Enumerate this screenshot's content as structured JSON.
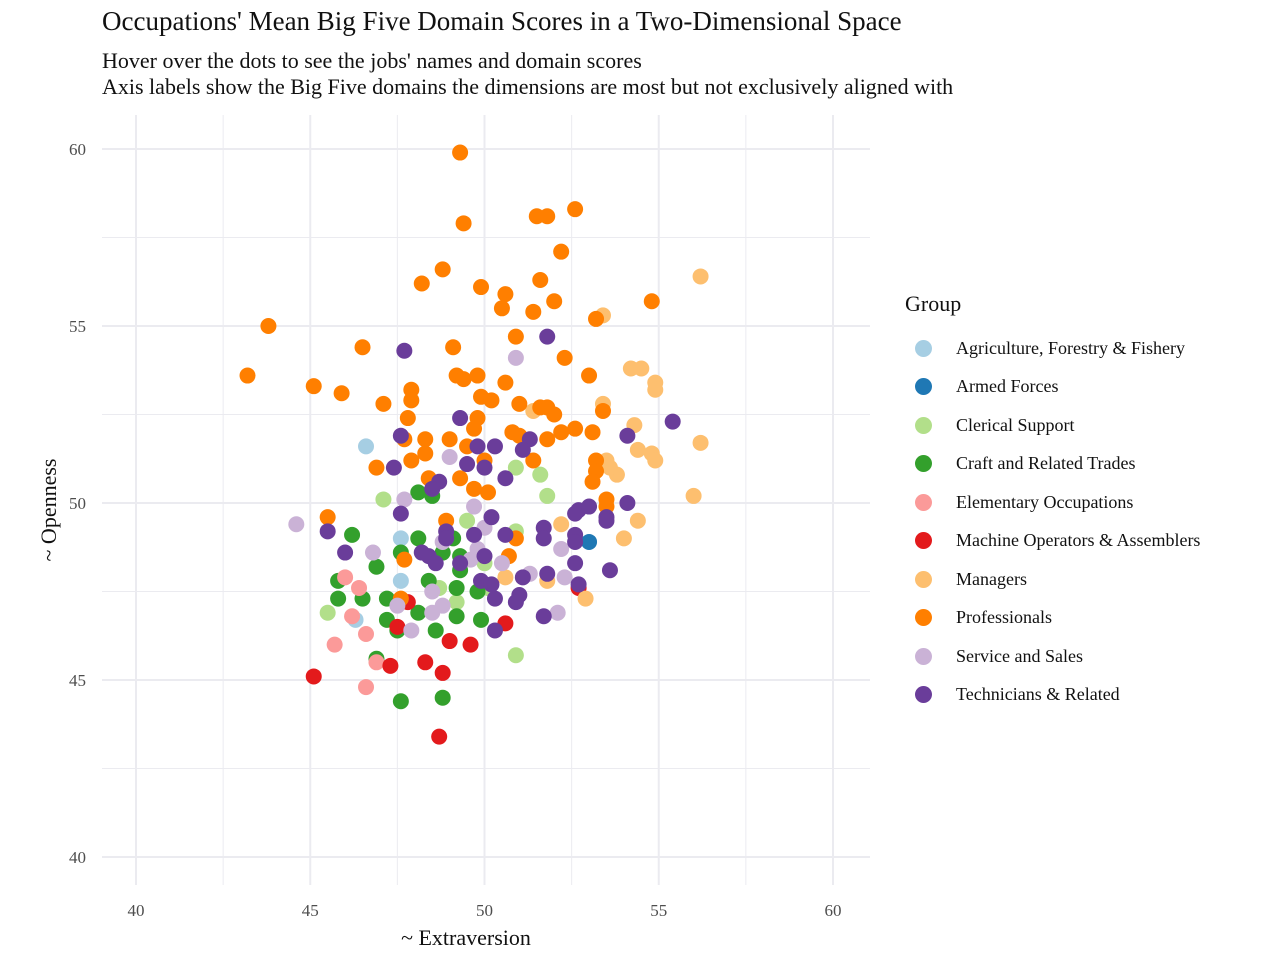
{
  "chart_data": {
    "type": "scatter",
    "title": "Occupations' Mean Big Five Domain Scores in a Two-Dimensional Space",
    "subtitle": [
      "Hover over the dots to see the jobs' names and domain scores",
      "Axis labels show the Big Five domains the dimensions are most but not exclusively aligned with"
    ],
    "xlabel": "~ Extraversion",
    "ylabel": "~ Openness",
    "xlim": [
      39,
      62
    ],
    "ylim": [
      39,
      61
    ],
    "xticks": [
      40,
      45,
      50,
      55,
      60
    ],
    "yticks": [
      40,
      45,
      50,
      55,
      60
    ],
    "grid": true,
    "legend_title": "Group",
    "legend_position": "right",
    "series": [
      {
        "name": "Agriculture, Forestry & Fishery",
        "color": "#a6cee3",
        "points": [
          [
            46.6,
            51.6
          ],
          [
            47.6,
            49.0
          ],
          [
            47.6,
            47.8
          ],
          [
            46.3,
            46.7
          ]
        ]
      },
      {
        "name": "Armed Forces",
        "color": "#1f78b4",
        "points": [
          [
            53.0,
            48.9
          ]
        ]
      },
      {
        "name": "Clerical Support",
        "color": "#b2df8a",
        "points": [
          [
            47.1,
            50.1
          ],
          [
            50.9,
            51.0
          ],
          [
            51.6,
            50.8
          ],
          [
            51.8,
            50.2
          ],
          [
            49.5,
            49.5
          ],
          [
            50.9,
            49.2
          ],
          [
            48.7,
            47.6
          ],
          [
            50.1,
            47.6
          ],
          [
            45.5,
            46.9
          ],
          [
            49.2,
            47.2
          ],
          [
            50.9,
            45.7
          ],
          [
            50.0,
            48.3
          ]
        ]
      },
      {
        "name": "Craft and Related Trades",
        "color": "#33a02c",
        "points": [
          [
            48.1,
            50.3
          ],
          [
            48.5,
            50.2
          ],
          [
            46.2,
            49.1
          ],
          [
            48.1,
            49.0
          ],
          [
            49.1,
            49.0
          ],
          [
            47.6,
            48.6
          ],
          [
            48.8,
            48.6
          ],
          [
            49.3,
            48.5
          ],
          [
            49.3,
            48.1
          ],
          [
            46.9,
            48.2
          ],
          [
            45.8,
            47.8
          ],
          [
            48.4,
            47.8
          ],
          [
            49.2,
            47.6
          ],
          [
            49.8,
            47.5
          ],
          [
            45.8,
            47.3
          ],
          [
            46.5,
            47.3
          ],
          [
            47.2,
            47.3
          ],
          [
            48.1,
            46.9
          ],
          [
            47.2,
            46.7
          ],
          [
            47.5,
            46.4
          ],
          [
            48.6,
            46.4
          ],
          [
            49.2,
            46.8
          ],
          [
            49.9,
            46.7
          ],
          [
            46.9,
            45.6
          ],
          [
            47.6,
            44.4
          ],
          [
            48.8,
            44.5
          ]
        ]
      },
      {
        "name": "Elementary Occupations",
        "color": "#fb9a99",
        "points": [
          [
            46.0,
            47.9
          ],
          [
            46.4,
            47.6
          ],
          [
            46.2,
            46.8
          ],
          [
            46.6,
            46.3
          ],
          [
            45.7,
            46.0
          ],
          [
            46.9,
            45.5
          ],
          [
            46.6,
            44.8
          ]
        ]
      },
      {
        "name": "Machine Operators & Assemblers",
        "color": "#e31a1c",
        "points": [
          [
            45.1,
            45.1
          ],
          [
            47.3,
            45.4
          ],
          [
            47.8,
            47.2
          ],
          [
            47.5,
            46.5
          ],
          [
            48.3,
            45.5
          ],
          [
            48.8,
            45.2
          ],
          [
            49.0,
            46.1
          ],
          [
            49.6,
            46.0
          ],
          [
            50.6,
            46.6
          ],
          [
            52.7,
            47.6
          ],
          [
            48.7,
            43.4
          ]
        ]
      },
      {
        "name": "Managers",
        "color": "#fdbf6f",
        "points": [
          [
            56.2,
            56.4
          ],
          [
            53.4,
            55.3
          ],
          [
            54.2,
            53.8
          ],
          [
            54.5,
            53.8
          ],
          [
            54.9,
            53.4
          ],
          [
            54.9,
            53.2
          ],
          [
            53.4,
            52.8
          ],
          [
            54.3,
            52.2
          ],
          [
            56.2,
            51.7
          ],
          [
            54.4,
            51.5
          ],
          [
            54.8,
            51.4
          ],
          [
            54.9,
            51.2
          ],
          [
            53.5,
            51.2
          ],
          [
            53.8,
            50.8
          ],
          [
            53.6,
            51.0
          ],
          [
            56.0,
            50.2
          ],
          [
            54.4,
            49.5
          ],
          [
            52.2,
            49.4
          ],
          [
            54.0,
            49.0
          ],
          [
            51.8,
            47.8
          ],
          [
            52.9,
            47.3
          ],
          [
            51.4,
            52.6
          ],
          [
            50.6,
            47.9
          ]
        ]
      },
      {
        "name": "Professionals",
        "color": "#ff7f00",
        "points": [
          [
            49.3,
            59.9
          ],
          [
            49.4,
            57.9
          ],
          [
            51.5,
            58.1
          ],
          [
            51.8,
            58.1
          ],
          [
            52.6,
            58.3
          ],
          [
            52.2,
            57.1
          ],
          [
            48.8,
            56.6
          ],
          [
            48.2,
            56.2
          ],
          [
            49.9,
            56.1
          ],
          [
            50.6,
            55.9
          ],
          [
            51.6,
            56.3
          ],
          [
            52.0,
            55.7
          ],
          [
            50.5,
            55.5
          ],
          [
            51.4,
            55.4
          ],
          [
            54.8,
            55.7
          ],
          [
            53.2,
            55.2
          ],
          [
            43.8,
            55.0
          ],
          [
            50.9,
            54.7
          ],
          [
            46.5,
            54.4
          ],
          [
            49.1,
            54.4
          ],
          [
            52.3,
            54.1
          ],
          [
            43.2,
            53.6
          ],
          [
            45.1,
            53.3
          ],
          [
            45.9,
            53.1
          ],
          [
            47.9,
            53.2
          ],
          [
            47.9,
            52.9
          ],
          [
            47.1,
            52.8
          ],
          [
            49.2,
            53.6
          ],
          [
            49.4,
            53.5
          ],
          [
            49.8,
            53.6
          ],
          [
            50.6,
            53.4
          ],
          [
            49.9,
            53.0
          ],
          [
            50.2,
            52.9
          ],
          [
            53.0,
            53.6
          ],
          [
            51.0,
            52.8
          ],
          [
            51.6,
            52.7
          ],
          [
            51.8,
            52.7
          ],
          [
            52.0,
            52.5
          ],
          [
            53.4,
            52.6
          ],
          [
            47.8,
            52.4
          ],
          [
            49.8,
            52.4
          ],
          [
            49.7,
            52.1
          ],
          [
            50.8,
            52.0
          ],
          [
            51.0,
            51.9
          ],
          [
            51.8,
            51.8
          ],
          [
            52.2,
            52.0
          ],
          [
            52.6,
            52.1
          ],
          [
            53.1,
            52.0
          ],
          [
            47.7,
            51.8
          ],
          [
            48.3,
            51.8
          ],
          [
            49.0,
            51.8
          ],
          [
            49.5,
            51.6
          ],
          [
            48.3,
            51.4
          ],
          [
            47.9,
            51.2
          ],
          [
            50.0,
            51.2
          ],
          [
            51.4,
            51.2
          ],
          [
            53.2,
            51.2
          ],
          [
            53.2,
            50.9
          ],
          [
            53.1,
            50.6
          ],
          [
            46.9,
            51.0
          ],
          [
            48.4,
            50.7
          ],
          [
            49.3,
            50.7
          ],
          [
            49.7,
            50.4
          ],
          [
            50.1,
            50.3
          ],
          [
            53.5,
            50.1
          ],
          [
            45.5,
            49.6
          ],
          [
            48.9,
            49.5
          ],
          [
            50.9,
            49.0
          ],
          [
            50.7,
            48.5
          ],
          [
            47.7,
            48.4
          ],
          [
            47.6,
            47.3
          ],
          [
            53.5,
            49.9
          ]
        ]
      },
      {
        "name": "Service and Sales",
        "color": "#cab2d6",
        "points": [
          [
            50.9,
            54.1
          ],
          [
            44.6,
            49.4
          ],
          [
            49.0,
            51.3
          ],
          [
            47.7,
            50.1
          ],
          [
            49.7,
            49.9
          ],
          [
            50.0,
            49.3
          ],
          [
            48.8,
            48.9
          ],
          [
            49.8,
            48.7
          ],
          [
            46.8,
            48.6
          ],
          [
            52.2,
            48.7
          ],
          [
            50.5,
            48.3
          ],
          [
            51.3,
            48.0
          ],
          [
            52.3,
            47.9
          ],
          [
            48.5,
            47.5
          ],
          [
            48.8,
            47.1
          ],
          [
            48.5,
            46.9
          ],
          [
            47.9,
            46.4
          ],
          [
            52.1,
            46.9
          ],
          [
            49.6,
            48.4
          ],
          [
            47.5,
            47.1
          ]
        ]
      },
      {
        "name": "Technicians & Related",
        "color": "#6a3d9a",
        "points": [
          [
            47.7,
            54.3
          ],
          [
            51.8,
            54.7
          ],
          [
            55.4,
            52.3
          ],
          [
            49.3,
            52.4
          ],
          [
            47.6,
            51.9
          ],
          [
            49.8,
            51.6
          ],
          [
            50.3,
            51.6
          ],
          [
            51.3,
            51.8
          ],
          [
            51.1,
            51.5
          ],
          [
            49.5,
            51.1
          ],
          [
            47.4,
            51.0
          ],
          [
            50.0,
            51.0
          ],
          [
            50.6,
            50.7
          ],
          [
            54.1,
            51.9
          ],
          [
            48.7,
            50.6
          ],
          [
            48.5,
            50.4
          ],
          [
            54.1,
            50.0
          ],
          [
            52.7,
            49.8
          ],
          [
            53.0,
            49.9
          ],
          [
            52.6,
            49.7
          ],
          [
            53.5,
            49.6
          ],
          [
            53.5,
            49.5
          ],
          [
            47.6,
            49.7
          ],
          [
            45.5,
            49.2
          ],
          [
            50.2,
            49.6
          ],
          [
            48.9,
            49.2
          ],
          [
            48.9,
            49.0
          ],
          [
            49.7,
            49.1
          ],
          [
            50.6,
            49.1
          ],
          [
            51.7,
            49.3
          ],
          [
            51.7,
            49.0
          ],
          [
            52.6,
            49.1
          ],
          [
            52.6,
            48.9
          ],
          [
            46.0,
            48.6
          ],
          [
            48.2,
            48.6
          ],
          [
            48.4,
            48.5
          ],
          [
            48.6,
            48.3
          ],
          [
            49.3,
            48.3
          ],
          [
            50.0,
            48.5
          ],
          [
            52.6,
            48.3
          ],
          [
            53.6,
            48.1
          ],
          [
            51.8,
            48.0
          ],
          [
            51.1,
            47.9
          ],
          [
            49.9,
            47.8
          ],
          [
            50.2,
            47.7
          ],
          [
            51.0,
            47.4
          ],
          [
            50.9,
            47.2
          ],
          [
            50.3,
            47.3
          ],
          [
            51.7,
            46.8
          ],
          [
            50.3,
            46.4
          ],
          [
            52.7,
            47.7
          ]
        ]
      }
    ]
  }
}
